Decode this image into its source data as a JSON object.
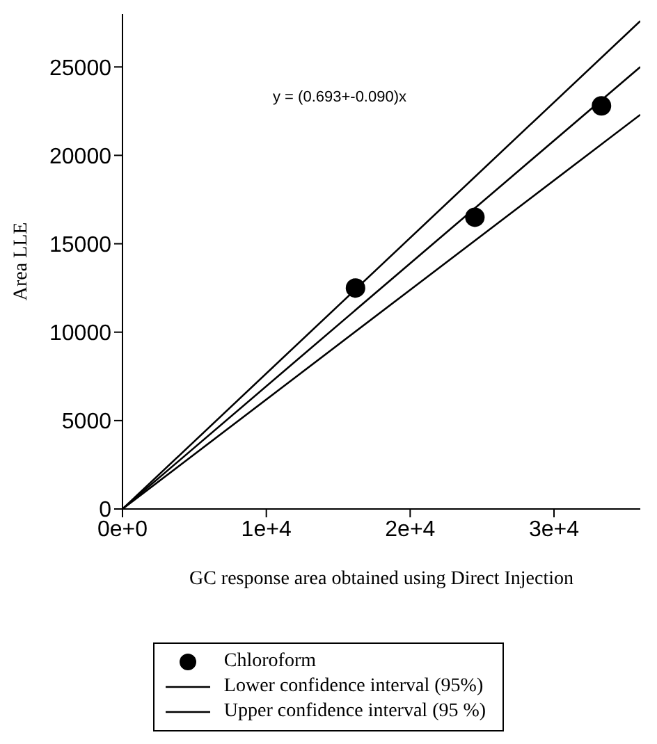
{
  "chart_data": {
    "type": "scatter",
    "xlabel": "GC response area obtained using Direct Injection",
    "ylabel": "Area LLE",
    "annotations": [
      "y = (0.693+-0.090)x"
    ],
    "series": [
      {
        "name": "Chloroform",
        "color": "#000000",
        "marker": "circle",
        "x": [
          16200,
          24500,
          33300
        ],
        "values": [
          12500,
          16500,
          22800
        ]
      },
      {
        "type": "line",
        "color": "#000000",
        "marker": "none",
        "x": [
          0,
          36000
        ],
        "values": [
          0,
          25000
        ]
      },
      {
        "name": "Lower confidence interval (95%)",
        "type": "line",
        "color": "#000000",
        "marker": "none",
        "x": [
          0,
          36000
        ],
        "values": [
          0,
          22300
        ]
      },
      {
        "name": "Upper confidence interval (95 %)",
        "type": "line",
        "color": "#000000",
        "marker": "none",
        "x": [
          0,
          36000
        ],
        "values": [
          0,
          27600
        ]
      }
    ],
    "xlim": [
      0,
      36000
    ],
    "xticks": [
      {
        "value": 0,
        "label": "0e+0"
      },
      {
        "value": 10000,
        "label": "1e+4"
      },
      {
        "value": 20000,
        "label": "2e+4"
      },
      {
        "value": 30000,
        "label": "3e+4"
      }
    ],
    "ylim": [
      0,
      28000
    ],
    "yticks": [
      0,
      5000,
      10000,
      15000,
      20000,
      25000
    ],
    "grid": false,
    "legend": "bottom"
  }
}
